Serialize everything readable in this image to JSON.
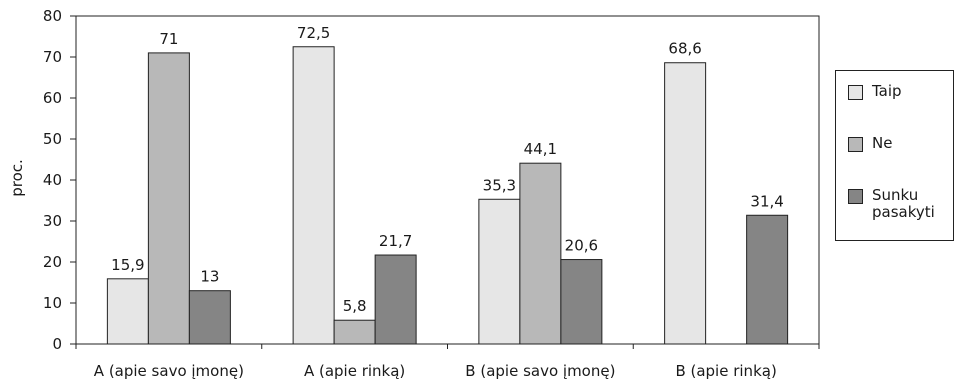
{
  "chart_data": {
    "type": "bar",
    "categories": [
      "A (apie savo įmonę)",
      "A (apie rinką)",
      "B (apie savo įmonę)",
      "B (apie rinką)"
    ],
    "series": [
      {
        "name": "Taip",
        "values": [
          15.9,
          72.5,
          35.3,
          68.6
        ],
        "labels": [
          "15,9",
          "72,5",
          "35,3",
          "68,6"
        ],
        "color": "#e6e6e6"
      },
      {
        "name": "Ne",
        "values": [
          71,
          5.8,
          44.1,
          null
        ],
        "labels": [
          "71",
          "5,8",
          "44,1",
          ""
        ],
        "color": "#b8b8b8"
      },
      {
        "name": "Sunku pasakyti",
        "values": [
          13,
          21.7,
          20.6,
          31.4
        ],
        "labels": [
          "13",
          "21,7",
          "20,6",
          "31,4"
        ],
        "color": "#858585"
      }
    ],
    "ylabel": "proc.",
    "ylim": [
      0,
      80
    ],
    "yticks": [
      0,
      10,
      20,
      30,
      40,
      50,
      60,
      70,
      80
    ],
    "legend_position": "right",
    "grid": false
  }
}
